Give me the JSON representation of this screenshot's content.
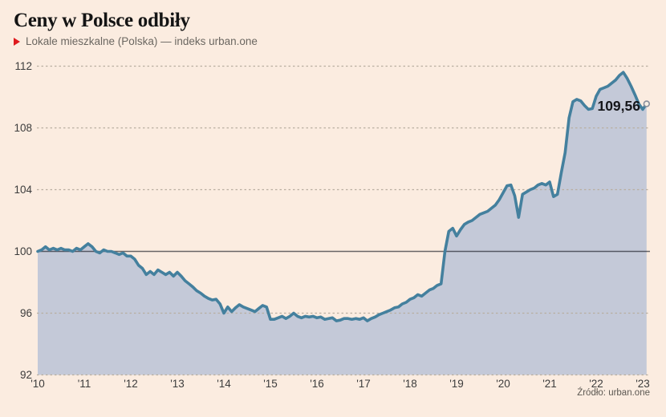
{
  "header": {
    "title": "Ceny w Polsce odbiły",
    "legend_label": "Lokale mieszkalne (Polska) — indeks urban.one"
  },
  "annotation": {
    "last_value_label": "109,56"
  },
  "source": "Źródło: urban.one",
  "colors": {
    "background": "#fbece0",
    "area_fill": "#c4c9d8",
    "line": "#44809e",
    "gridline": "#b9aea0",
    "baseline": "rgba(15,18,28,0.62)",
    "axis_text": "#3c3c3c",
    "legend_marker": "#df1a1e",
    "marker_fill": "#f8f0e5",
    "marker_stroke": "#8a8f9c"
  },
  "chart_data": {
    "type": "area",
    "title": "Ceny w Polsce odbiły",
    "series_name": "Lokale mieszkalne (Polska) — indeks urban.one",
    "frequency": "monthly",
    "x_start": "2010-01",
    "x_end": "2023-02",
    "x_tick_labels": [
      "'10",
      "'11",
      "'12",
      "'13",
      "'14",
      "'15",
      "'16",
      "'17",
      "'18",
      "'19",
      "'20",
      "'21",
      "'22",
      "'23"
    ],
    "y_ticks": [
      92,
      96,
      100,
      104,
      108,
      112
    ],
    "ylim": [
      92,
      112
    ],
    "baseline": 100,
    "grid": "dashed-horizontal",
    "legend_position": "top-left",
    "last_value": 109.56,
    "values": [
      100.0,
      100.1,
      100.3,
      100.1,
      100.2,
      100.1,
      100.2,
      100.1,
      100.1,
      100.0,
      100.2,
      100.1,
      100.3,
      100.5,
      100.3,
      100.0,
      99.9,
      100.1,
      100.0,
      100.0,
      99.9,
      99.8,
      99.9,
      99.7,
      99.7,
      99.5,
      99.1,
      98.9,
      98.5,
      98.7,
      98.5,
      98.8,
      98.65,
      98.5,
      98.65,
      98.4,
      98.65,
      98.4,
      98.1,
      97.9,
      97.7,
      97.45,
      97.3,
      97.1,
      96.95,
      96.85,
      96.9,
      96.6,
      96.0,
      96.4,
      96.1,
      96.35,
      96.55,
      96.4,
      96.3,
      96.2,
      96.1,
      96.3,
      96.5,
      96.4,
      95.6,
      95.6,
      95.7,
      95.8,
      95.65,
      95.8,
      96.0,
      95.8,
      95.7,
      95.8,
      95.75,
      95.8,
      95.7,
      95.75,
      95.6,
      95.65,
      95.7,
      95.5,
      95.55,
      95.65,
      95.65,
      95.6,
      95.65,
      95.6,
      95.7,
      95.5,
      95.65,
      95.75,
      95.9,
      96.0,
      96.1,
      96.2,
      96.35,
      96.4,
      96.6,
      96.7,
      96.9,
      97.0,
      97.2,
      97.1,
      97.3,
      97.5,
      97.6,
      97.8,
      97.9,
      100.0,
      101.3,
      101.5,
      101.0,
      101.4,
      101.75,
      101.9,
      102.0,
      102.2,
      102.4,
      102.5,
      102.6,
      102.8,
      103.0,
      103.35,
      103.8,
      104.25,
      104.3,
      103.6,
      102.2,
      103.7,
      103.85,
      104.0,
      104.1,
      104.3,
      104.4,
      104.3,
      104.5,
      103.55,
      103.7,
      105.1,
      106.4,
      108.65,
      109.7,
      109.85,
      109.75,
      109.45,
      109.2,
      109.25,
      110.05,
      110.5,
      110.6,
      110.7,
      110.9,
      111.1,
      111.4,
      111.6,
      111.2,
      110.7,
      110.15,
      109.55,
      109.2,
      109.56
    ]
  }
}
